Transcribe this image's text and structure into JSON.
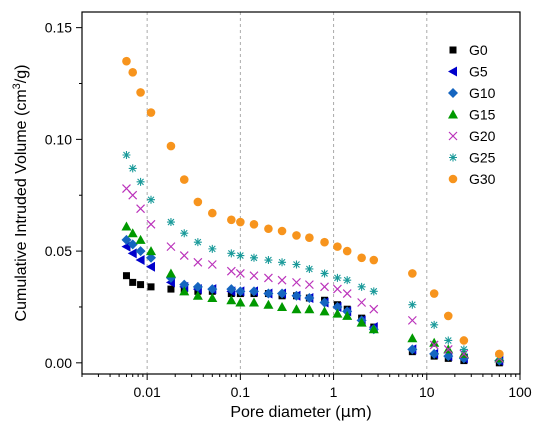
{
  "chart_data": {
    "type": "scatter",
    "xscale": "log",
    "xlim": [
      0.002,
      100
    ],
    "ylim": [
      -0.005,
      0.157
    ],
    "xlabel": "Pore diameter (",
    "xlabel_unit": "μm",
    "xlabel_close": ")",
    "ylabel": "Cumulative Intruded Volume (cm",
    "ylabel_sup": "3",
    "ylabel_close": "/g)",
    "x_ticks": [
      {
        "value": 0.01,
        "label": "0.01"
      },
      {
        "value": 0.1,
        "label": "0.1"
      },
      {
        "value": 1,
        "label": "1"
      },
      {
        "value": 10,
        "label": "10"
      },
      {
        "value": 100,
        "label": "100"
      }
    ],
    "y_ticks": [
      {
        "value": 0,
        "label": "0.00"
      },
      {
        "value": 0.05,
        "label": "0.05"
      },
      {
        "value": 0.1,
        "label": "0.10"
      },
      {
        "value": 0.15,
        "label": "0.15"
      }
    ],
    "grid": "vertical dashed at decades",
    "legend_position": "top-right",
    "series": [
      {
        "name": "G0",
        "marker": "square",
        "color": "#000000",
        "x": [
          0.006,
          0.007,
          0.0085,
          0.011,
          0.018,
          0.025,
          0.035,
          0.05,
          0.08,
          0.1,
          0.14,
          0.2,
          0.28,
          0.4,
          0.55,
          0.8,
          1.1,
          1.4,
          2.0,
          2.7,
          7.0,
          12.0,
          17.0,
          25.0,
          60.0
        ],
        "y": [
          0.039,
          0.036,
          0.035,
          0.034,
          0.033,
          0.033,
          0.032,
          0.032,
          0.031,
          0.031,
          0.031,
          0.031,
          0.03,
          0.03,
          0.029,
          0.028,
          0.026,
          0.024,
          0.02,
          0.016,
          0.005,
          0.003,
          0.002,
          0.001,
          0.0
        ]
      },
      {
        "name": "G5",
        "marker": "left-triangle",
        "color": "#0000cc",
        "x": [
          0.006,
          0.007,
          0.0085,
          0.011,
          0.018,
          0.025,
          0.035,
          0.05,
          0.08,
          0.1,
          0.14,
          0.2,
          0.28,
          0.4,
          0.55,
          0.8,
          1.1,
          1.4,
          2.0,
          2.7,
          7.0,
          12.0,
          17.0,
          25.0,
          60.0
        ],
        "y": [
          0.052,
          0.049,
          0.046,
          0.043,
          0.036,
          0.034,
          0.033,
          0.033,
          0.032,
          0.032,
          0.032,
          0.031,
          0.031,
          0.03,
          0.029,
          0.027,
          0.025,
          0.023,
          0.019,
          0.016,
          0.006,
          0.004,
          0.003,
          0.002,
          0.001
        ]
      },
      {
        "name": "G10",
        "marker": "diamond",
        "color": "#1565c0",
        "x": [
          0.006,
          0.007,
          0.0085,
          0.011,
          0.018,
          0.025,
          0.035,
          0.05,
          0.08,
          0.1,
          0.14,
          0.2,
          0.28,
          0.4,
          0.55,
          0.8,
          1.1,
          1.4,
          2.0,
          2.7,
          7.0,
          12.0,
          17.0,
          25.0,
          60.0
        ],
        "y": [
          0.055,
          0.053,
          0.05,
          0.047,
          0.038,
          0.035,
          0.034,
          0.033,
          0.033,
          0.032,
          0.032,
          0.031,
          0.031,
          0.03,
          0.029,
          0.027,
          0.025,
          0.023,
          0.019,
          0.015,
          0.006,
          0.004,
          0.003,
          0.002,
          0.001
        ]
      },
      {
        "name": "G15",
        "marker": "triangle",
        "color": "#009900",
        "x": [
          0.006,
          0.007,
          0.0085,
          0.011,
          0.018,
          0.025,
          0.035,
          0.05,
          0.08,
          0.1,
          0.14,
          0.2,
          0.28,
          0.4,
          0.55,
          0.8,
          1.1,
          1.4,
          2.0,
          2.7,
          7.0,
          12.0,
          17.0,
          25.0,
          60.0
        ],
        "y": [
          0.061,
          0.058,
          0.055,
          0.05,
          0.04,
          0.032,
          0.03,
          0.029,
          0.028,
          0.027,
          0.027,
          0.026,
          0.025,
          0.024,
          0.024,
          0.023,
          0.022,
          0.021,
          0.018,
          0.015,
          0.011,
          0.009,
          0.006,
          0.004,
          0.002
        ]
      },
      {
        "name": "G20",
        "marker": "x",
        "color": "#bb33bb",
        "x": [
          0.006,
          0.007,
          0.0085,
          0.011,
          0.018,
          0.025,
          0.035,
          0.05,
          0.08,
          0.1,
          0.14,
          0.2,
          0.28,
          0.4,
          0.55,
          0.8,
          1.1,
          1.4,
          2.0,
          2.7,
          7.0,
          12.0,
          17.0,
          25.0,
          60.0
        ],
        "y": [
          0.078,
          0.075,
          0.069,
          0.062,
          0.052,
          0.048,
          0.045,
          0.044,
          0.041,
          0.04,
          0.039,
          0.038,
          0.037,
          0.036,
          0.035,
          0.034,
          0.033,
          0.031,
          0.027,
          0.024,
          0.019,
          0.008,
          0.006,
          0.004,
          0.002
        ]
      },
      {
        "name": "G25",
        "marker": "asterisk",
        "color": "#1a9a9a",
        "x": [
          0.006,
          0.007,
          0.0085,
          0.011,
          0.018,
          0.025,
          0.035,
          0.05,
          0.08,
          0.1,
          0.14,
          0.2,
          0.28,
          0.4,
          0.55,
          0.8,
          1.1,
          1.4,
          2.0,
          2.7,
          7.0,
          12.0,
          17.0,
          25.0,
          60.0
        ],
        "y": [
          0.093,
          0.087,
          0.081,
          0.073,
          0.063,
          0.058,
          0.054,
          0.051,
          0.049,
          0.048,
          0.047,
          0.046,
          0.045,
          0.044,
          0.042,
          0.04,
          0.038,
          0.037,
          0.034,
          0.032,
          0.026,
          0.017,
          0.01,
          0.006,
          0.003
        ]
      },
      {
        "name": "G30",
        "marker": "circle",
        "color": "#f7941d",
        "x": [
          0.006,
          0.007,
          0.0085,
          0.011,
          0.018,
          0.025,
          0.035,
          0.05,
          0.08,
          0.1,
          0.14,
          0.2,
          0.28,
          0.4,
          0.55,
          0.8,
          1.1,
          1.4,
          2.0,
          2.7,
          7.0,
          12.0,
          17.0,
          25.0,
          60.0
        ],
        "y": [
          0.135,
          0.13,
          0.121,
          0.112,
          0.097,
          0.082,
          0.072,
          0.067,
          0.064,
          0.063,
          0.062,
          0.06,
          0.059,
          0.057,
          0.056,
          0.054,
          0.052,
          0.05,
          0.047,
          0.046,
          0.04,
          0.031,
          0.021,
          0.01,
          0.004
        ]
      }
    ]
  }
}
